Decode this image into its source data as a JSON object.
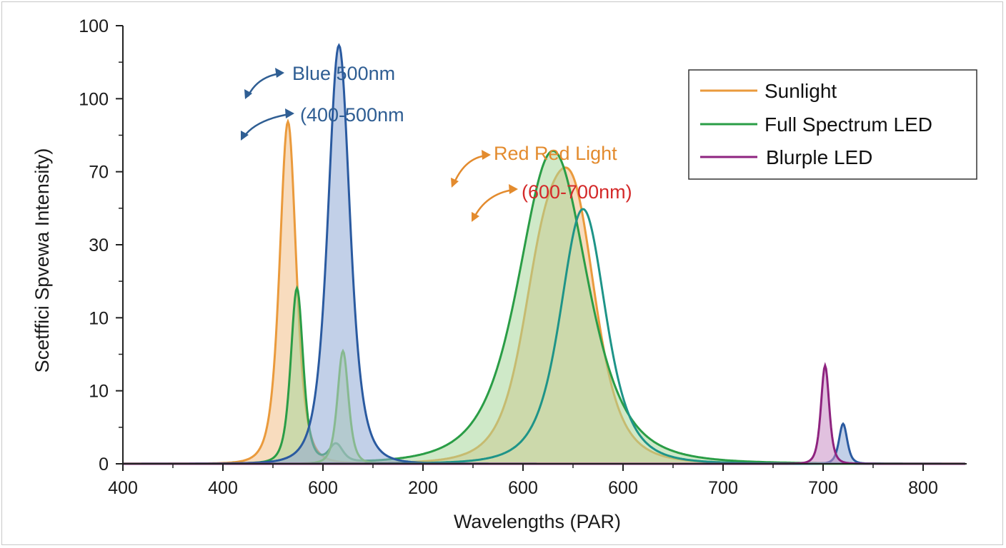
{
  "chart_data": {
    "type": "area",
    "title": "",
    "xlabel": "Wavelengths (PAR)",
    "ylabel": "Scetffici Spvewa Intensity)",
    "x_tick_labels": [
      "400",
      "400",
      "600",
      "200",
      "600",
      "600",
      "700",
      "700",
      "800"
    ],
    "y_tick_labels": [
      "0",
      "10",
      "10",
      "30",
      "70",
      "100",
      "100"
    ],
    "ylim": [
      0,
      100
    ],
    "grid": false,
    "legend_position": "top-right",
    "legend": [
      {
        "label": "Sunlight",
        "color": "#ea9a3c"
      },
      {
        "label": "Full Spectrum LED",
        "color": "#2a9d46"
      },
      {
        "label": "Blurple LED",
        "color": "#8e237f"
      }
    ],
    "annotations": [
      {
        "text": "Blue 500nm",
        "color": "#2f5e93"
      },
      {
        "text": "(400-500nm",
        "color": "#2f5e93"
      },
      {
        "text": "Red Red Light",
        "color": "#e38b2e"
      },
      {
        "text": "(600-700nm)",
        "color": "#d42a2a"
      }
    ],
    "series": [
      {
        "kind": "sunlight",
        "color": "#ea9a3c",
        "fill": "#f2c089",
        "peaks": [
          {
            "x": 1.65,
            "y": 94,
            "w": 0.12
          },
          {
            "x": 4.2,
            "y": 45,
            "w": 0.33
          },
          {
            "x": 4.52,
            "y": 60,
            "w": 0.33
          }
        ]
      },
      {
        "kind": "full",
        "color": "#2a9d46",
        "fill": "#a8d79a",
        "peaks": [
          {
            "x": 1.74,
            "y": 48,
            "w": 0.09
          },
          {
            "x": 2.13,
            "y": 5,
            "w": 0.1
          },
          {
            "x": 4.3,
            "y": 86,
            "w": 0.5
          }
        ]
      },
      {
        "kind": "green-extra",
        "color": "#7ccc3c",
        "fill": "#c9e89a",
        "peaks": [
          {
            "x": 2.2,
            "y": 31,
            "w": 0.08
          }
        ]
      },
      {
        "kind": "teal",
        "color": "#1e9488",
        "fill": "none",
        "peaks": [
          {
            "x": 4.6,
            "y": 70,
            "w": 0.33
          }
        ]
      },
      {
        "kind": "blue",
        "color": "#2a5aa0",
        "fill": "#8fa9d6",
        "peaks": [
          {
            "x": 2.16,
            "y": 115,
            "w": 0.16
          },
          {
            "x": 7.2,
            "y": 11,
            "w": 0.06
          }
        ]
      },
      {
        "kind": "blurple",
        "color": "#8e237f",
        "fill": "#c98ec4",
        "peaks": [
          {
            "x": 7.02,
            "y": 27,
            "w": 0.06
          }
        ]
      }
    ]
  }
}
